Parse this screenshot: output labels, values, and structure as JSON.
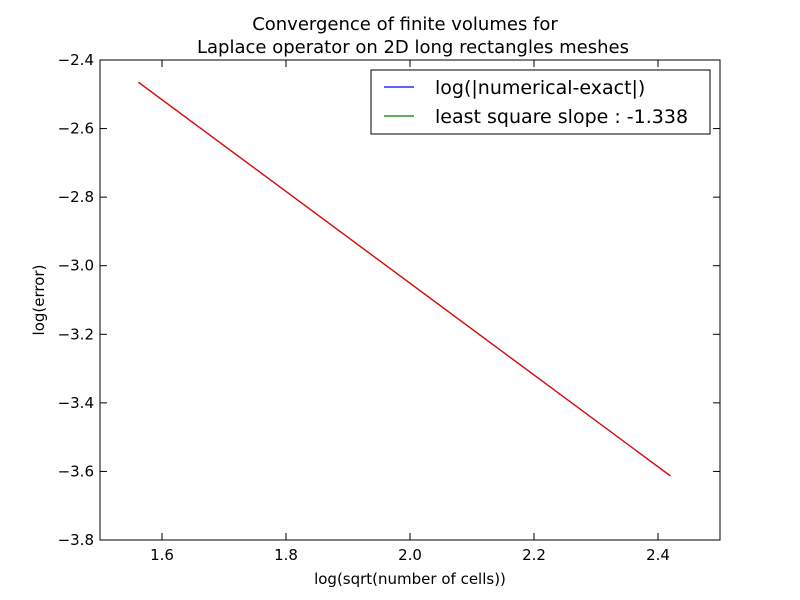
{
  "chart_data": {
    "type": "line",
    "title_line1": "Convergence of finite volumes for",
    "title_line2": "Laplace operator on 2D long rectangles meshes",
    "xlabel": "log(sqrt(number of cells))",
    "ylabel": "log(error)",
    "xlim": [
      1.5,
      2.5
    ],
    "ylim": [
      -3.8,
      -2.4
    ],
    "x_ticks": [
      1.6,
      1.8,
      2.0,
      2.2,
      2.4
    ],
    "x_tick_labels": [
      "1.6",
      "1.8",
      "2.0",
      "2.2",
      "2.4"
    ],
    "y_ticks": [
      -2.4,
      -2.6,
      -2.8,
      -3.0,
      -3.2,
      -3.4,
      -3.6,
      -3.8
    ],
    "y_tick_labels": [
      "−2.4",
      "−2.6",
      "−2.8",
      "−3.0",
      "−3.2",
      "−3.4",
      "−3.6",
      "−3.8"
    ],
    "grid": false,
    "legend_position": "top-right",
    "legend": [
      {
        "label": "log(|numerical-exact|)",
        "color": "#0000ff"
      },
      {
        "label": "least square slope : -1.338",
        "color": "#008000"
      }
    ],
    "series": [
      {
        "name": "log(|numerical-exact|)",
        "color": "#0000ff",
        "x": [
          1.562,
          2.42
        ],
        "y": [
          -2.465,
          -3.613
        ]
      },
      {
        "name": "least square slope : -1.338",
        "color": "#008000",
        "x": [
          1.562,
          2.42
        ],
        "y": [
          -2.465,
          -3.613
        ]
      },
      {
        "color": "#ff0000",
        "x": [
          1.562,
          2.42
        ],
        "y": [
          -2.465,
          -3.613
        ]
      }
    ]
  }
}
